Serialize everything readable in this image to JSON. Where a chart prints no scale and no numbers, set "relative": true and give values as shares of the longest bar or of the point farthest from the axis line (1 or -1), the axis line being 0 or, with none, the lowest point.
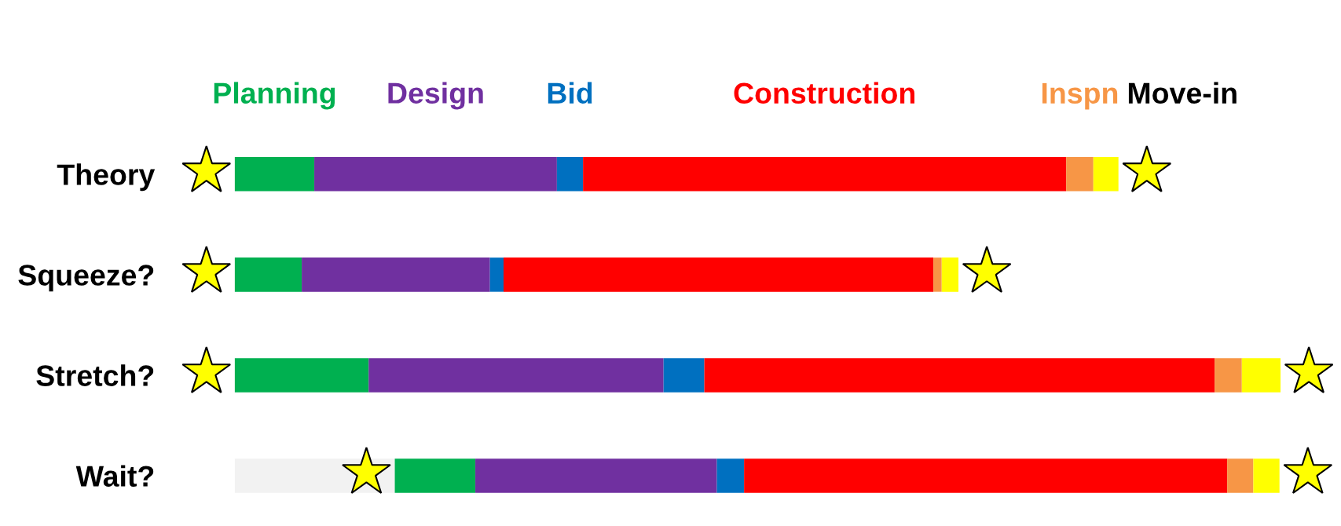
{
  "chart_data": {
    "type": "bar",
    "orientation": "horizontal",
    "stacked": true,
    "relative": true,
    "categories": [
      "Theory",
      "Squeeze?",
      "Stretch?",
      "Wait?"
    ],
    "series": [
      {
        "color": "#f2f2f2",
        "values": [
          0,
          0,
          0,
          0.153
        ]
      },
      {
        "name": "Planning",
        "color": "#00b050",
        "values": [
          0.076,
          0.064,
          0.128,
          0.077
        ]
      },
      {
        "name": "Design",
        "color": "#7030a0",
        "values": [
          0.232,
          0.18,
          0.282,
          0.231
        ]
      },
      {
        "name": "Bid",
        "color": "#0070c0",
        "values": [
          0.025,
          0.013,
          0.039,
          0.026
        ]
      },
      {
        "name": "Construction",
        "color": "#ff0000",
        "values": [
          0.462,
          0.411,
          0.488,
          0.462
        ]
      },
      {
        "name": "Inspn",
        "color": "#f79646",
        "values": [
          0.026,
          0.008,
          0.026,
          0.025
        ]
      },
      {
        "name": "Move-in",
        "color": "#ffff00",
        "values": [
          0.024,
          0.016,
          0.037,
          0.025
        ]
      }
    ],
    "legend": "top"
  }
}
